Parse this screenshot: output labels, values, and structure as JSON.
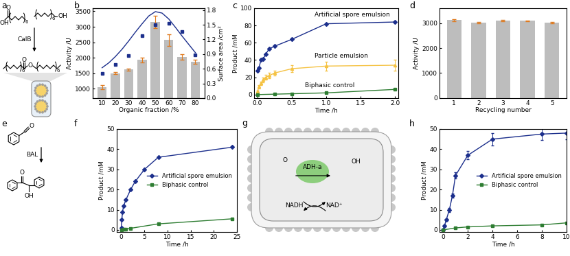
{
  "panel_labels": [
    "a",
    "b",
    "c",
    "d",
    "e",
    "f",
    "g",
    "h"
  ],
  "diagrams": {
    "scheme_a": {
      "enzyme": "CalB",
      "acid_atoms": [
        "O",
        "OH"
      ],
      "alcohol_atoms": [
        "OH"
      ],
      "repeat_index": "6",
      "ester_atoms": [
        "O",
        "O"
      ]
    },
    "scheme_e": {
      "enzyme": "BAL",
      "substrate_atoms": [
        "O"
      ],
      "product_atoms": [
        "O",
        "OH"
      ]
    },
    "scheme_g": {
      "enzyme": "ADH-a",
      "cofactors": [
        "NADH",
        "NAD⁺"
      ],
      "substrate_atoms": [
        "O"
      ],
      "product_atoms": [
        "OH"
      ]
    }
  },
  "chart_data": [
    {
      "type": "bar",
      "x": [
        10,
        20,
        30,
        40,
        50,
        60,
        70,
        80
      ],
      "xlim": [
        3,
        87
      ],
      "xticks": [
        10,
        20,
        30,
        40,
        50,
        60,
        70,
        80
      ],
      "ylim": [
        700,
        3600
      ],
      "yticks": [
        1000,
        1500,
        2000,
        2500,
        3000,
        3500
      ],
      "y2lim": [
        0,
        1.84
      ],
      "y2ticks": [
        0.0,
        0.3,
        0.6,
        0.9,
        1.2,
        1.5,
        1.8
      ],
      "xlabel": "Organic fraction /%",
      "ylabel": "Activity /U",
      "y2label": "Surface area /cm²",
      "series": [
        {
          "type": "bar",
          "color": "#bdbdbd",
          "values": [
            1050,
            1500,
            1620,
            1930,
            3150,
            2570,
            2020,
            1870
          ],
          "errors": [
            70,
            30,
            30,
            80,
            200,
            180,
            90,
            60
          ]
        },
        {
          "type": "scatter",
          "axis": "y2",
          "color": "#1c2f8c",
          "marker": "square",
          "values": [
            0.5,
            0.68,
            0.87,
            1.27,
            1.5,
            1.53,
            1.36,
            0.89
          ]
        },
        {
          "type": "line",
          "axis": "y2",
          "color": "#1c2f8c",
          "line_style": "solid",
          "x": [
            10,
            15,
            20,
            25,
            30,
            35,
            40,
            45,
            50,
            55,
            60,
            65,
            70,
            75,
            80
          ],
          "values": [
            0.62,
            0.72,
            0.85,
            1.0,
            1.17,
            1.35,
            1.52,
            1.68,
            1.77,
            1.74,
            1.62,
            1.45,
            1.27,
            1.1,
            0.93
          ]
        }
      ]
    },
    {
      "type": "line",
      "xlim": [
        -0.05,
        2.05
      ],
      "xticks": [
        0.0,
        0.5,
        1.0,
        1.5,
        2.0
      ],
      "ylim": [
        -4,
        100
      ],
      "yticks": [
        0,
        20,
        40,
        60,
        80,
        100
      ],
      "xlabel": "Time /h",
      "ylabel": "Product /mM",
      "series": [
        {
          "name": "Artificial spore emulsion",
          "color": "#1c2f8c",
          "marker": "diamond",
          "line_style": "solid",
          "x": [
            0,
            0.02,
            0.05,
            0.08,
            0.12,
            0.17,
            0.25,
            0.5,
            1.0,
            2.0
          ],
          "values": [
            28,
            31,
            40,
            41,
            47,
            53,
            56,
            64,
            82,
            84
          ]
        },
        {
          "name": "Particle emulsion",
          "color": "#f5c242",
          "marker": "triangle",
          "line_style": "solid",
          "x": [
            0,
            0.02,
            0.05,
            0.08,
            0.12,
            0.17,
            0.25,
            0.5,
            1.0,
            2.0
          ],
          "values": [
            4,
            9,
            13,
            17,
            20,
            22,
            25,
            30,
            33,
            34
          ],
          "errors": [
            1,
            2,
            2,
            3,
            3,
            3,
            3,
            4,
            5,
            6
          ]
        },
        {
          "name": "Biphasic control",
          "color": "#2e7d32",
          "marker": "square",
          "line_style": "solid",
          "x": [
            0,
            0.25,
            0.5,
            1.0,
            2.0
          ],
          "values": [
            0,
            0.5,
            1,
            2,
            6
          ]
        }
      ]
    },
    {
      "type": "bar",
      "categories": [
        "1",
        "2",
        "3",
        "4",
        "5"
      ],
      "ylim": [
        0,
        3600
      ],
      "yticks": [
        0,
        1000,
        2000,
        3000
      ],
      "xlabel": "Recycling number",
      "ylabel": "Activity /U",
      "series": [
        {
          "type": "bar",
          "color": "#bdbdbd",
          "values": [
            3120,
            3030,
            3110,
            3090,
            3010
          ],
          "errors": [
            40,
            30,
            30,
            25,
            30
          ]
        }
      ]
    },
    {
      "type": "line",
      "xlim": [
        -1,
        25
      ],
      "xticks": [
        0,
        5,
        10,
        15,
        20,
        25
      ],
      "ylim": [
        -1,
        50
      ],
      "yticks": [
        0,
        10,
        20,
        30,
        40,
        50
      ],
      "xlabel": "Time /h",
      "ylabel": "Product /mM",
      "legend": "right",
      "series": [
        {
          "name": "Artificial spore emulsion",
          "color": "#1c2f8c",
          "marker": "diamond",
          "line_style": "solid",
          "x": [
            0,
            0.1,
            0.25,
            0.5,
            1,
            2,
            3,
            5,
            8,
            24
          ],
          "values": [
            1,
            5,
            9,
            12,
            15,
            20,
            24,
            30,
            36,
            41
          ]
        },
        {
          "name": "Biphasic control",
          "color": "#2e7d32",
          "marker": "square",
          "line_style": "solid",
          "x": [
            0,
            0.5,
            1,
            2,
            8,
            24
          ],
          "values": [
            0,
            0.3,
            0.5,
            0.8,
            3,
            5.5
          ]
        }
      ]
    },
    {
      "type": "line",
      "xlim": [
        -0.3,
        10
      ],
      "xticks": [
        0,
        2,
        4,
        6,
        8,
        10
      ],
      "ylim": [
        -1,
        50
      ],
      "yticks": [
        0,
        10,
        20,
        30,
        40,
        50
      ],
      "xlabel": "Time /h",
      "ylabel": "Product /mM",
      "legend": "right",
      "series": [
        {
          "name": "Artificial spore emulsion",
          "color": "#1c2f8c",
          "marker": "diamond",
          "line_style": "solid",
          "x": [
            0,
            0.1,
            0.25,
            0.5,
            0.75,
            1,
            2,
            4,
            8,
            10
          ],
          "values": [
            0,
            2,
            5,
            10,
            17,
            27,
            37,
            45,
            47.5,
            48
          ],
          "errors": [
            0,
            0.5,
            0.5,
            1,
            1,
            1.5,
            2,
            3,
            3,
            3
          ]
        },
        {
          "name": "Biphasic control",
          "color": "#2e7d32",
          "marker": "square",
          "line_style": "solid",
          "x": [
            0,
            1,
            2,
            4,
            8,
            10
          ],
          "values": [
            0,
            1,
            1.5,
            2,
            2.5,
            3.5
          ]
        }
      ]
    }
  ]
}
